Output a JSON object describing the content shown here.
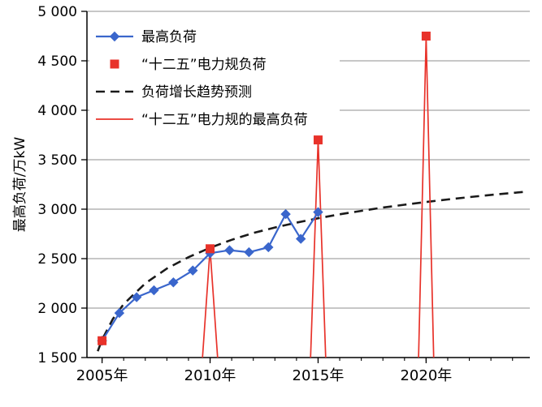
{
  "chart_data": {
    "type": "line",
    "title": "",
    "xlabel": "",
    "ylabel": "最高负荷/万kW",
    "xlim": [
      2004.3,
      2024.8
    ],
    "ylim": [
      1500,
      5000
    ],
    "grid": true,
    "legend_position": "top-left",
    "yticks": [
      {
        "value": 1500,
        "label": "1 500"
      },
      {
        "value": 2000,
        "label": "2 000"
      },
      {
        "value": 2500,
        "label": "2 500"
      },
      {
        "value": 3000,
        "label": "3 000"
      },
      {
        "value": 3500,
        "label": "3 500"
      },
      {
        "value": 4000,
        "label": "4 000"
      },
      {
        "value": 4500,
        "label": "4 500"
      },
      {
        "value": 5000,
        "label": "5 000"
      }
    ],
    "xticks_major": [
      {
        "value": 2005,
        "label": "2005年"
      },
      {
        "value": 2010,
        "label": "2010年"
      },
      {
        "value": 2015,
        "label": "2015年"
      },
      {
        "value": 2020,
        "label": "2020年"
      }
    ],
    "xticks_minor_step": 1,
    "series": [
      {
        "id": "max-load",
        "name": "最高负荷",
        "kind": "line",
        "line_style": "solid",
        "color": "#3a66cc",
        "width": 2.2,
        "marker": "diamond",
        "points": [
          [
            2005,
            1670
          ],
          [
            2005.8,
            1950
          ],
          [
            2006.6,
            2110
          ],
          [
            2007.4,
            2180
          ],
          [
            2008.3,
            2260
          ],
          [
            2009.2,
            2380
          ],
          [
            2010,
            2555
          ],
          [
            2010.9,
            2585
          ],
          [
            2011.8,
            2565
          ],
          [
            2012.7,
            2615
          ],
          [
            2013.5,
            2950
          ],
          [
            2014.2,
            2700
          ],
          [
            2015,
            2970
          ]
        ]
      },
      {
        "id": "plan-load",
        "name": "“十二五”电力规负荷",
        "kind": "scatter",
        "color": "#e8322a",
        "marker": "square",
        "points": [
          [
            2005,
            1670
          ],
          [
            2010,
            2600
          ],
          [
            2015,
            3700
          ],
          [
            2020,
            4750
          ]
        ]
      },
      {
        "id": "trend-forecast",
        "name": "负荷增长趋势预测",
        "kind": "line",
        "line_style": "dashed",
        "color": "#1a1a1a",
        "width": 2.6,
        "points": [
          [
            2004.8,
            1564
          ],
          [
            2005,
            1680
          ],
          [
            2005.5,
            1890
          ],
          [
            2006,
            2040
          ],
          [
            2007,
            2250
          ],
          [
            2008,
            2400
          ],
          [
            2009,
            2515
          ],
          [
            2010,
            2610
          ],
          [
            2011,
            2690
          ],
          [
            2012,
            2759
          ],
          [
            2013,
            2815
          ],
          [
            2014,
            2864
          ],
          [
            2015,
            2908
          ],
          [
            2016,
            2948
          ],
          [
            2017,
            2983
          ],
          [
            2018,
            3016
          ],
          [
            2019,
            3045
          ],
          [
            2020,
            3073
          ],
          [
            2021,
            3098
          ],
          [
            2022,
            3122
          ],
          [
            2023,
            3144
          ],
          [
            2024,
            3164
          ],
          [
            2024.7,
            3178
          ]
        ]
      },
      {
        "id": "plan-peak-spikes",
        "name": "“十二五”电力规的最高负荷",
        "kind": "line",
        "line_style": "solid",
        "color": "#e8322a",
        "width": 1.7,
        "segments": [
          [
            [
              2009.65,
              1500
            ],
            [
              2010,
              2600
            ],
            [
              2010.35,
              1500
            ]
          ],
          [
            [
              2014.65,
              1500
            ],
            [
              2015,
              3700
            ],
            [
              2015.35,
              1500
            ]
          ],
          [
            [
              2019.65,
              1500
            ],
            [
              2020,
              4750
            ],
            [
              2020.35,
              1500
            ]
          ]
        ]
      }
    ]
  }
}
